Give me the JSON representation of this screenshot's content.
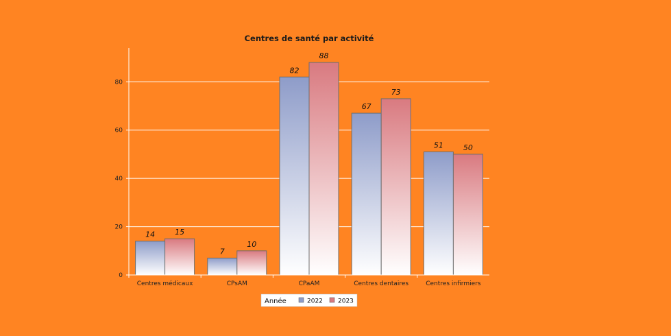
{
  "chart_data": {
    "type": "bar",
    "title": "Centres de santé par activité",
    "xlabel": "",
    "ylabel": "",
    "categories": [
      "Centres médicaux",
      "CPsAM",
      "CPaAM",
      "Centres dentaires",
      "Centres infirmiers"
    ],
    "series": [
      {
        "name": "2022",
        "values": [
          14,
          7,
          82,
          67,
          51
        ],
        "color": "#8E9CC9"
      },
      {
        "name": "2023",
        "values": [
          15,
          10,
          88,
          73,
          50
        ],
        "color": "#D97A80"
      }
    ],
    "ylim": [
      0,
      94
    ],
    "yticks": [
      0,
      20,
      40,
      60,
      80
    ],
    "grid": true,
    "legend": {
      "title": "Année",
      "position": "bottom-center"
    },
    "background": "#FF8422"
  }
}
